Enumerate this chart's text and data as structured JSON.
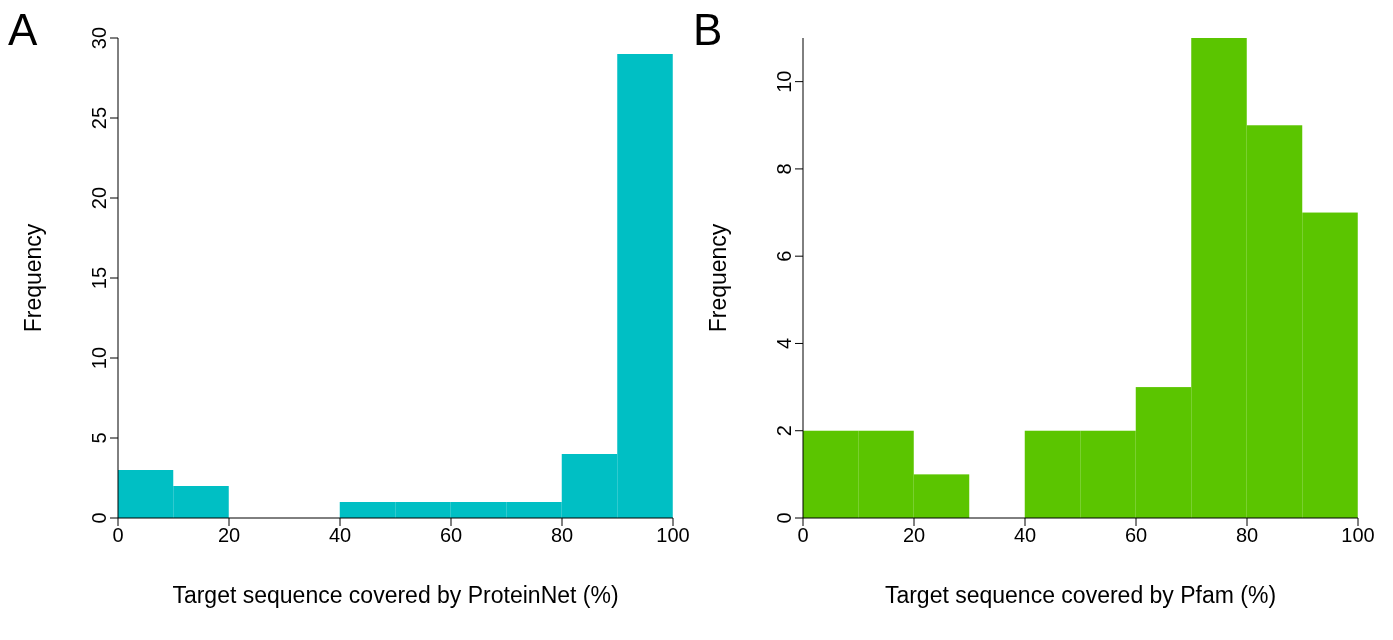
{
  "chart_data": [
    {
      "type": "histogram",
      "annotations": [
        "A"
      ],
      "xlabel": "Target sequence covered by ProteinNet (%)",
      "ylabel": "Frequency",
      "bins": [
        0,
        10,
        20,
        30,
        40,
        50,
        60,
        70,
        80,
        90,
        100
      ],
      "values": [
        3,
        2,
        0,
        0,
        1,
        1,
        1,
        1,
        4,
        29
      ],
      "color": "#00bfc4",
      "xlim": [
        0,
        100
      ],
      "xticks": [
        0,
        20,
        40,
        60,
        80,
        100
      ],
      "ylim": [
        0,
        30
      ],
      "yticks": [
        0,
        5,
        10,
        15,
        20,
        25,
        30
      ],
      "grid": false,
      "legend": false
    },
    {
      "type": "histogram",
      "annotations": [
        "B"
      ],
      "xlabel": "Target sequence covered by Pfam (%)",
      "ylabel": "Frequency",
      "bins": [
        0,
        10,
        20,
        30,
        40,
        50,
        60,
        70,
        80,
        90,
        100
      ],
      "values": [
        2,
        2,
        1,
        0,
        2,
        2,
        3,
        11,
        9,
        7
      ],
      "color": "#5bc500",
      "xlim": [
        0,
        100
      ],
      "xticks": [
        0,
        20,
        40,
        60,
        80,
        100
      ],
      "ylim": [
        0,
        11
      ],
      "yticks": [
        0,
        2,
        4,
        6,
        8,
        10
      ],
      "grid": false,
      "legend": false
    }
  ]
}
